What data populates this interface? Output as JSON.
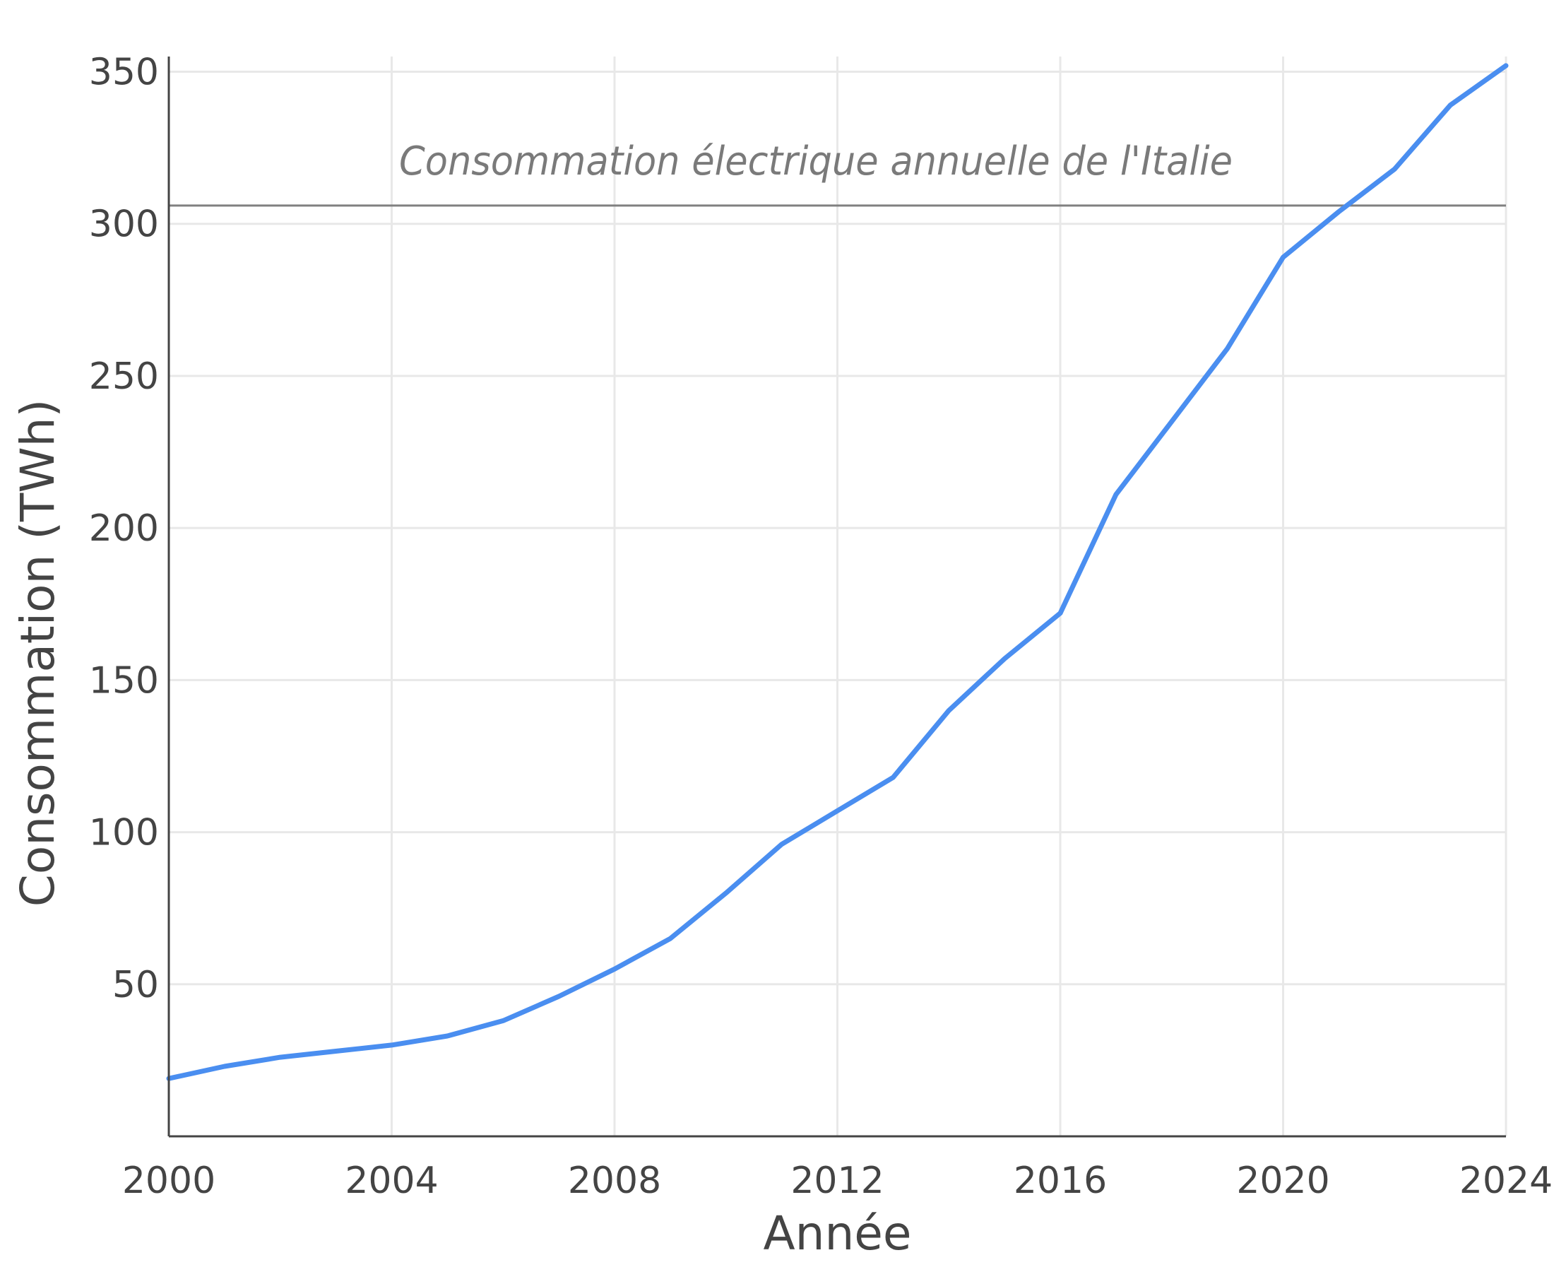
{
  "chart_data": {
    "type": "line",
    "title": "",
    "xlabel": "Année",
    "ylabel": "Consommation (TWh)",
    "xlim": [
      2000,
      2024
    ],
    "ylim": [
      0,
      355
    ],
    "x_ticks": [
      2000,
      2004,
      2008,
      2012,
      2016,
      2020,
      2024
    ],
    "y_ticks": [
      50,
      100,
      150,
      200,
      250,
      300,
      350
    ],
    "grid": true,
    "series": [
      {
        "color": "#4a8ef0",
        "x": [
          2000,
          2001,
          2002,
          2003,
          2004,
          2005,
          2006,
          2007,
          2008,
          2009,
          2010,
          2011,
          2012,
          2013,
          2014,
          2015,
          2016,
          2017,
          2018,
          2019,
          2020,
          2021,
          2022,
          2023,
          2024
        ],
        "y": [
          19,
          23,
          26,
          28,
          30,
          33,
          38,
          46,
          55,
          65,
          80,
          96,
          107,
          118,
          140,
          157,
          172,
          211,
          235,
          259,
          289,
          304,
          318,
          339,
          352
        ]
      }
    ],
    "reference_line": {
      "y": 306,
      "label": "Consommation électrique annuelle de l'Italie",
      "color": "#808080"
    }
  }
}
